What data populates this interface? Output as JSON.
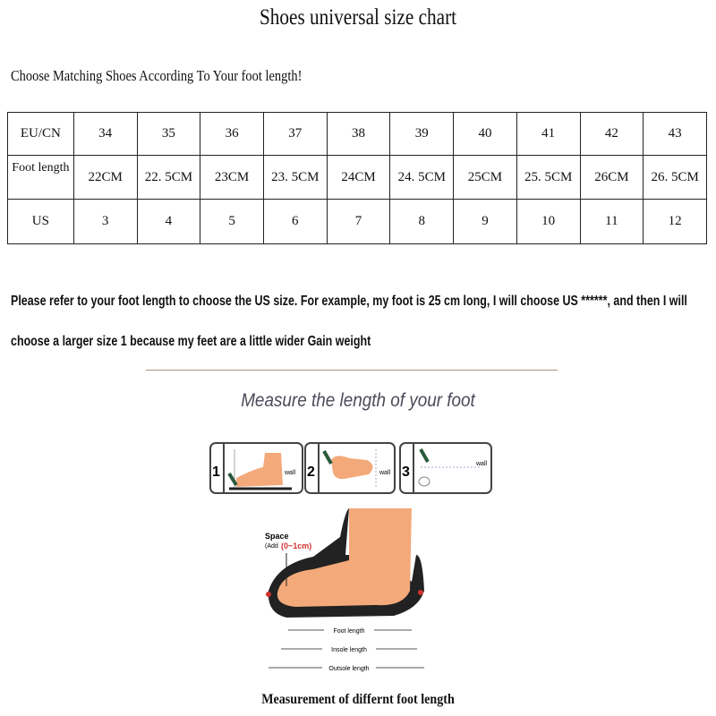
{
  "title": "Shoes universal size chart",
  "subtitle": "Choose Matching Shoes According To Your foot length!",
  "table": {
    "rows": [
      {
        "label": "EU/CN",
        "values": [
          "34",
          "35",
          "36",
          "37",
          "38",
          "39",
          "40",
          "41",
          "42",
          "43"
        ]
      },
      {
        "label": "Foot length",
        "values": [
          "22CM",
          "22. 5CM",
          "23CM",
          "23. 5CM",
          "24CM",
          "24. 5CM",
          "25CM",
          "25. 5CM",
          "26CM",
          "26. 5CM"
        ]
      },
      {
        "label": "US",
        "values": [
          "3",
          "4",
          "5",
          "6",
          "7",
          "8",
          "9",
          "10",
          "11",
          "12"
        ]
      }
    ]
  },
  "note_line1": "Please refer to your foot length to choose the US size. For example, my foot is 25 cm long, I will choose US ******, and then I will",
  "note_line2": "choose a larger size 1 because my feet are a little wider Gain weight",
  "measure_heading": "Measure the length of your foot",
  "steps": [
    {
      "num": "1",
      "label": "wall"
    },
    {
      "num": "2",
      "label": "wall"
    },
    {
      "num": "3",
      "label": "wall"
    }
  ],
  "diagram": {
    "space": "Space",
    "add": "(Add",
    "range": "(0~1cm)",
    "foot": "Foot length",
    "insole": "Insole length",
    "outsole": "Outsole length"
  },
  "caption": "Measurement of differnt foot length",
  "colors": {
    "skin": "#f4a97a",
    "accent_red": "#d03030",
    "heading": "#4a4a5a"
  }
}
